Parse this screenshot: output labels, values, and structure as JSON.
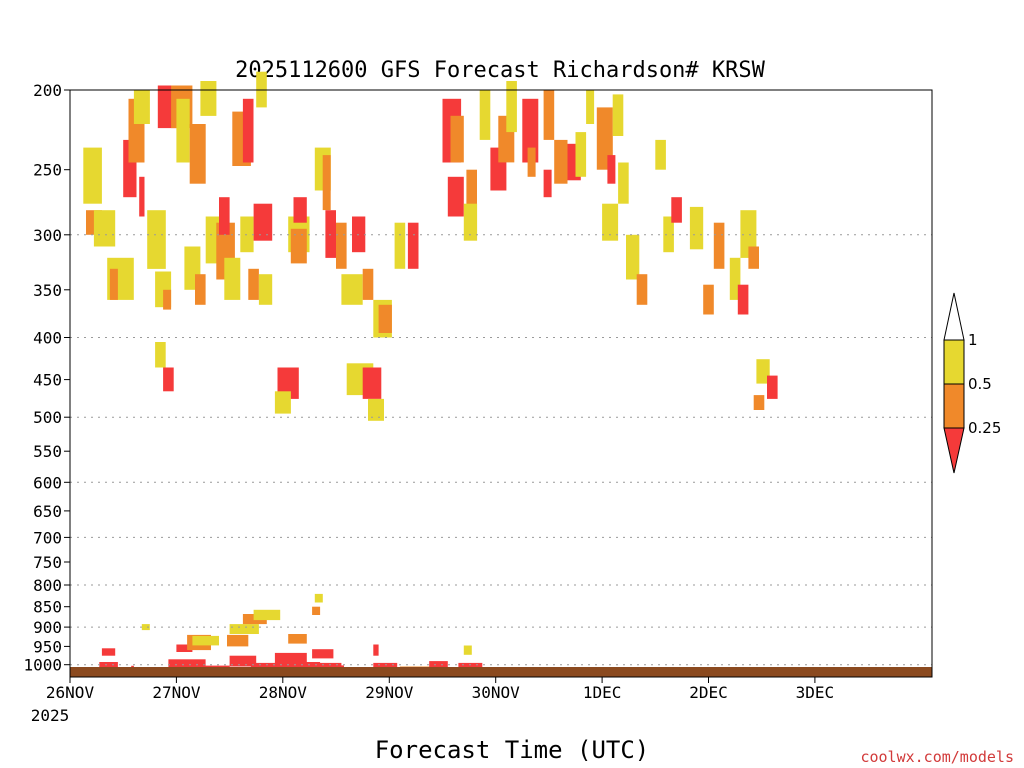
{
  "chart_data": {
    "type": "heatmap",
    "title": "2025112600 GFS Forecast Richardson# KRSW",
    "xlabel": "Forecast Time (UTC)",
    "ylabel": "",
    "x_tick_labels": [
      "26NOV",
      "27NOV",
      "28NOV",
      "29NOV",
      "30NOV",
      "1DEC",
      "2DEC",
      "3DEC"
    ],
    "x_tick_sublabel": "2025",
    "x_range_days": [
      0,
      8.1
    ],
    "y_tick_labels": [
      "200",
      "250",
      "300",
      "350",
      "400",
      "450",
      "500",
      "550",
      "600",
      "650",
      "700",
      "750",
      "800",
      "850",
      "900",
      "950",
      "1000"
    ],
    "y_range_hpa": [
      200,
      1035
    ],
    "y_scale": "log",
    "gridlines_hpa": [
      300,
      400,
      500,
      600,
      700,
      800,
      900,
      1000
    ],
    "legend": {
      "placement": "right",
      "labels": [
        "1",
        "0.5",
        "0.25"
      ],
      "colors": {
        "high": "#e6d830",
        "mid": "#f0892a",
        "low": "#f53a3a"
      }
    },
    "ground_color": "#8b4a1f",
    "cells": [
      {
        "t": 0.55,
        "p": 1005,
        "dt": 0.35,
        "dp": 25,
        "c": "low"
      },
      {
        "t": 0.6,
        "p": 965,
        "dt": 0.25,
        "dp": 20,
        "c": "low"
      },
      {
        "t": 1.15,
        "p": 1008,
        "dt": 0.05,
        "dp": 10,
        "c": "low"
      },
      {
        "t": 1.35,
        "p": 900,
        "dt": 0.15,
        "dp": 15,
        "c": "high"
      },
      {
        "t": 1.85,
        "p": 1000,
        "dt": 0.7,
        "dp": 30,
        "c": "low"
      },
      {
        "t": 2.0,
        "p": 955,
        "dt": 0.3,
        "dp": 20,
        "c": "low"
      },
      {
        "t": 2.2,
        "p": 940,
        "dt": 0.45,
        "dp": 40,
        "c": "mid"
      },
      {
        "t": 2.3,
        "p": 935,
        "dt": 0.5,
        "dp": 25,
        "c": "high"
      },
      {
        "t": 2.2,
        "p": 1010,
        "dt": 0.8,
        "dp": 15,
        "c": "low"
      },
      {
        "t": 2.95,
        "p": 935,
        "dt": 0.4,
        "dp": 30,
        "c": "mid"
      },
      {
        "t": 3.0,
        "p": 905,
        "dt": 0.55,
        "dp": 25,
        "c": "high"
      },
      {
        "t": 3.25,
        "p": 880,
        "dt": 0.45,
        "dp": 25,
        "c": "mid"
      },
      {
        "t": 3.45,
        "p": 870,
        "dt": 0.5,
        "dp": 25,
        "c": "high"
      },
      {
        "t": 3.0,
        "p": 990,
        "dt": 0.5,
        "dp": 30,
        "c": "low"
      },
      {
        "t": 3.4,
        "p": 1005,
        "dt": 1.0,
        "dp": 20,
        "c": "low"
      },
      {
        "t": 3.85,
        "p": 985,
        "dt": 0.6,
        "dp": 35,
        "c": "low"
      },
      {
        "t": 4.2,
        "p": 1005,
        "dt": 0.5,
        "dp": 25,
        "c": "low"
      },
      {
        "t": 4.1,
        "p": 930,
        "dt": 0.35,
        "dp": 25,
        "c": "mid"
      },
      {
        "t": 4.55,
        "p": 970,
        "dt": 0.4,
        "dp": 25,
        "c": "low"
      },
      {
        "t": 4.6,
        "p": 1005,
        "dt": 0.5,
        "dp": 20,
        "c": "low"
      },
      {
        "t": 4.6,
        "p": 830,
        "dt": 0.15,
        "dp": 20,
        "c": "high"
      },
      {
        "t": 4.55,
        "p": 860,
        "dt": 0.15,
        "dp": 20,
        "c": "mid"
      },
      {
        "t": 4.95,
        "p": 1008,
        "dt": 0.2,
        "dp": 12,
        "c": "low"
      },
      {
        "t": 5.2,
        "p": 1012,
        "dt": 0.4,
        "dp": 10,
        "c": "low"
      },
      {
        "t": 5.7,
        "p": 1005,
        "dt": 0.45,
        "dp": 20,
        "c": "low"
      },
      {
        "t": 5.7,
        "p": 960,
        "dt": 0.1,
        "dp": 30,
        "c": "low"
      },
      {
        "t": 6.2,
        "p": 1010,
        "dt": 0.8,
        "dp": 10,
        "c": "mid"
      },
      {
        "t": 6.75,
        "p": 1000,
        "dt": 0.35,
        "dp": 20,
        "c": "low"
      },
      {
        "t": 7.3,
        "p": 1005,
        "dt": 0.45,
        "dp": 20,
        "c": "low"
      },
      {
        "t": 7.4,
        "p": 960,
        "dt": 0.15,
        "dp": 25,
        "c": "high"
      },
      {
        "t": 0.25,
        "p": 255,
        "dt": 0.35,
        "dp": 40,
        "c": "high"
      },
      {
        "t": 0.3,
        "p": 290,
        "dt": 0.3,
        "dp": 20,
        "c": "mid"
      },
      {
        "t": 0.45,
        "p": 295,
        "dt": 0.4,
        "dp": 30,
        "c": "high"
      },
      {
        "t": 0.7,
        "p": 340,
        "dt": 0.5,
        "dp": 40,
        "c": "high"
      },
      {
        "t": 0.75,
        "p": 345,
        "dt": 0.15,
        "dp": 30,
        "c": "mid"
      },
      {
        "t": 1.0,
        "p": 250,
        "dt": 0.25,
        "dp": 40,
        "c": "low"
      },
      {
        "t": 1.1,
        "p": 225,
        "dt": 0.3,
        "dp": 40,
        "c": "mid"
      },
      {
        "t": 1.2,
        "p": 210,
        "dt": 0.3,
        "dp": 20,
        "c": "high"
      },
      {
        "t": 1.3,
        "p": 270,
        "dt": 0.1,
        "dp": 30,
        "c": "low"
      },
      {
        "t": 1.45,
        "p": 305,
        "dt": 0.35,
        "dp": 50,
        "c": "high"
      },
      {
        "t": 1.6,
        "p": 350,
        "dt": 0.3,
        "dp": 35,
        "c": "high"
      },
      {
        "t": 1.75,
        "p": 360,
        "dt": 0.15,
        "dp": 20,
        "c": "mid"
      },
      {
        "t": 1.6,
        "p": 420,
        "dt": 0.2,
        "dp": 30,
        "c": "high"
      },
      {
        "t": 1.75,
        "p": 450,
        "dt": 0.2,
        "dp": 30,
        "c": "low"
      },
      {
        "t": 1.65,
        "p": 210,
        "dt": 0.4,
        "dp": 25,
        "c": "low"
      },
      {
        "t": 1.9,
        "p": 210,
        "dt": 0.4,
        "dp": 25,
        "c": "mid"
      },
      {
        "t": 2.0,
        "p": 225,
        "dt": 0.25,
        "dp": 40,
        "c": "high"
      },
      {
        "t": 2.25,
        "p": 240,
        "dt": 0.3,
        "dp": 40,
        "c": "mid"
      },
      {
        "t": 2.45,
        "p": 205,
        "dt": 0.3,
        "dp": 20,
        "c": "high"
      },
      {
        "t": 2.15,
        "p": 330,
        "dt": 0.3,
        "dp": 40,
        "c": "high"
      },
      {
        "t": 2.35,
        "p": 350,
        "dt": 0.2,
        "dp": 30,
        "c": "mid"
      },
      {
        "t": 2.55,
        "p": 305,
        "dt": 0.3,
        "dp": 40,
        "c": "high"
      },
      {
        "t": 2.75,
        "p": 315,
        "dt": 0.35,
        "dp": 50,
        "c": "mid"
      },
      {
        "t": 2.8,
        "p": 285,
        "dt": 0.2,
        "dp": 30,
        "c": "low"
      },
      {
        "t": 2.9,
        "p": 340,
        "dt": 0.3,
        "dp": 40,
        "c": "high"
      },
      {
        "t": 3.05,
        "p": 230,
        "dt": 0.35,
        "dp": 35,
        "c": "mid"
      },
      {
        "t": 3.25,
        "p": 225,
        "dt": 0.2,
        "dp": 40,
        "c": "low"
      },
      {
        "t": 3.2,
        "p": 300,
        "dt": 0.25,
        "dp": 30,
        "c": "high"
      },
      {
        "t": 3.45,
        "p": 290,
        "dt": 0.35,
        "dp": 30,
        "c": "low"
      },
      {
        "t": 3.35,
        "p": 345,
        "dt": 0.2,
        "dp": 30,
        "c": "mid"
      },
      {
        "t": 3.5,
        "p": 200,
        "dt": 0.2,
        "dp": 20,
        "c": "high"
      },
      {
        "t": 3.55,
        "p": 350,
        "dt": 0.25,
        "dp": 30,
        "c": "high"
      },
      {
        "t": 3.9,
        "p": 455,
        "dt": 0.4,
        "dp": 40,
        "c": "low"
      },
      {
        "t": 3.85,
        "p": 480,
        "dt": 0.3,
        "dp": 30,
        "c": "high"
      },
      {
        "t": 4.1,
        "p": 300,
        "dt": 0.4,
        "dp": 30,
        "c": "high"
      },
      {
        "t": 4.15,
        "p": 310,
        "dt": 0.3,
        "dp": 30,
        "c": "mid"
      },
      {
        "t": 4.2,
        "p": 280,
        "dt": 0.25,
        "dp": 20,
        "c": "low"
      },
      {
        "t": 4.6,
        "p": 250,
        "dt": 0.3,
        "dp": 30,
        "c": "high"
      },
      {
        "t": 4.8,
        "p": 300,
        "dt": 0.2,
        "dp": 40,
        "c": "low"
      },
      {
        "t": 4.75,
        "p": 260,
        "dt": 0.15,
        "dp": 40,
        "c": "mid"
      },
      {
        "t": 5.0,
        "p": 310,
        "dt": 0.2,
        "dp": 40,
        "c": "mid"
      },
      {
        "t": 5.1,
        "p": 350,
        "dt": 0.4,
        "dp": 30,
        "c": "high"
      },
      {
        "t": 5.3,
        "p": 300,
        "dt": 0.25,
        "dp": 30,
        "c": "low"
      },
      {
        "t": 5.5,
        "p": 345,
        "dt": 0.2,
        "dp": 30,
        "c": "mid"
      },
      {
        "t": 5.7,
        "p": 380,
        "dt": 0.35,
        "dp": 40,
        "c": "high"
      },
      {
        "t": 5.8,
        "p": 380,
        "dt": 0.25,
        "dp": 30,
        "c": "mid"
      },
      {
        "t": 5.2,
        "p": 450,
        "dt": 0.5,
        "dp": 40,
        "c": "high"
      },
      {
        "t": 5.5,
        "p": 455,
        "dt": 0.35,
        "dp": 40,
        "c": "low"
      },
      {
        "t": 5.6,
        "p": 490,
        "dt": 0.3,
        "dp": 30,
        "c": "high"
      },
      {
        "t": 6.1,
        "p": 310,
        "dt": 0.2,
        "dp": 40,
        "c": "high"
      },
      {
        "t": 6.35,
        "p": 310,
        "dt": 0.2,
        "dp": 40,
        "c": "low"
      },
      {
        "t": 7.0,
        "p": 225,
        "dt": 0.35,
        "dp": 40,
        "c": "low"
      },
      {
        "t": 7.15,
        "p": 230,
        "dt": 0.25,
        "dp": 30,
        "c": "mid"
      },
      {
        "t": 7.1,
        "p": 270,
        "dt": 0.3,
        "dp": 30,
        "c": "low"
      },
      {
        "t": 7.45,
        "p": 265,
        "dt": 0.2,
        "dp": 30,
        "c": "mid"
      },
      {
        "t": 7.7,
        "p": 215,
        "dt": 0.2,
        "dp": 30,
        "c": "high"
      },
      {
        "t": 7.9,
        "p": 250,
        "dt": 0.3,
        "dp": 30,
        "c": "low"
      },
      {
        "t": 8.05,
        "p": 230,
        "dt": 0.3,
        "dp": 30,
        "c": "mid"
      },
      {
        "t": 8.2,
        "p": 210,
        "dt": 0.2,
        "dp": 30,
        "c": "high"
      },
      {
        "t": 7.4,
        "p": 290,
        "dt": 0.25,
        "dp": 30,
        "c": "high"
      },
      {
        "t": 8.5,
        "p": 225,
        "dt": 0.3,
        "dp": 40,
        "c": "low"
      },
      {
        "t": 8.6,
        "p": 245,
        "dt": 0.15,
        "dp": 20,
        "c": "mid"
      },
      {
        "t": 8.9,
        "p": 215,
        "dt": 0.2,
        "dp": 30,
        "c": "mid"
      },
      {
        "t": 8.9,
        "p": 260,
        "dt": 0.15,
        "dp": 20,
        "c": "low"
      },
      {
        "t": 9.1,
        "p": 245,
        "dt": 0.25,
        "dp": 30,
        "c": "mid"
      },
      {
        "t": 9.35,
        "p": 245,
        "dt": 0.25,
        "dp": 25,
        "c": "low"
      },
      {
        "t": 9.5,
        "p": 240,
        "dt": 0.2,
        "dp": 30,
        "c": "high"
      },
      {
        "t": 9.7,
        "p": 210,
        "dt": 0.15,
        "dp": 20,
        "c": "high"
      },
      {
        "t": 9.9,
        "p": 230,
        "dt": 0.3,
        "dp": 40,
        "c": "mid"
      },
      {
        "t": 10.2,
        "p": 215,
        "dt": 0.2,
        "dp": 25,
        "c": "high"
      },
      {
        "t": 10.3,
        "p": 260,
        "dt": 0.2,
        "dp": 30,
        "c": "high"
      },
      {
        "t": 10.0,
        "p": 290,
        "dt": 0.3,
        "dp": 30,
        "c": "high"
      },
      {
        "t": 10.1,
        "p": 250,
        "dt": 0.15,
        "dp": 20,
        "c": "low"
      },
      {
        "t": 10.45,
        "p": 320,
        "dt": 0.25,
        "dp": 40,
        "c": "high"
      },
      {
        "t": 10.65,
        "p": 350,
        "dt": 0.2,
        "dp": 30,
        "c": "mid"
      },
      {
        "t": 11.0,
        "p": 240,
        "dt": 0.2,
        "dp": 20,
        "c": "high"
      },
      {
        "t": 11.15,
        "p": 300,
        "dt": 0.2,
        "dp": 30,
        "c": "high"
      },
      {
        "t": 11.3,
        "p": 280,
        "dt": 0.2,
        "dp": 20,
        "c": "low"
      },
      {
        "t": 11.65,
        "p": 295,
        "dt": 0.25,
        "dp": 35,
        "c": "high"
      },
      {
        "t": 11.9,
        "p": 360,
        "dt": 0.2,
        "dp": 30,
        "c": "mid"
      },
      {
        "t": 12.1,
        "p": 310,
        "dt": 0.2,
        "dp": 40,
        "c": "mid"
      },
      {
        "t": 12.4,
        "p": 340,
        "dt": 0.2,
        "dp": 40,
        "c": "high"
      },
      {
        "t": 12.55,
        "p": 360,
        "dt": 0.2,
        "dp": 30,
        "c": "low"
      },
      {
        "t": 12.6,
        "p": 300,
        "dt": 0.3,
        "dp": 40,
        "c": "high"
      },
      {
        "t": 12.75,
        "p": 320,
        "dt": 0.2,
        "dp": 20,
        "c": "mid"
      },
      {
        "t": 12.9,
        "p": 440,
        "dt": 0.25,
        "dp": 30,
        "c": "high"
      },
      {
        "t": 12.85,
        "p": 480,
        "dt": 0.2,
        "dp": 20,
        "c": "mid"
      },
      {
        "t": 13.1,
        "p": 460,
        "dt": 0.2,
        "dp": 30,
        "c": "low"
      }
    ]
  }
}
